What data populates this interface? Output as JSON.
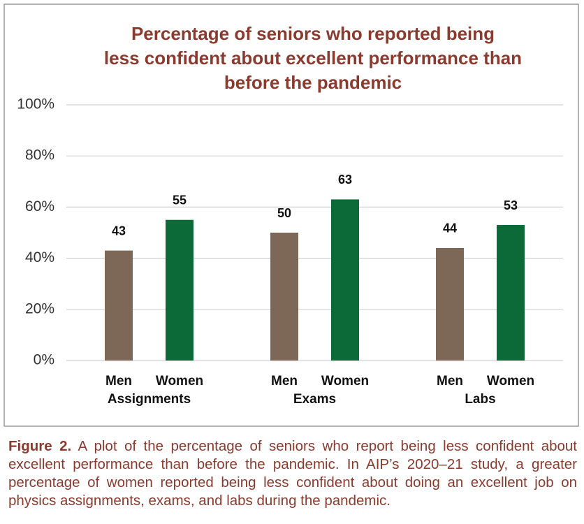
{
  "chart_data": {
    "type": "grouped-bar",
    "title": "Percentage of seniors who reported being less confident about excellent performance than before the pandemic",
    "categories": [
      "Assignments",
      "Exams",
      "Labs"
    ],
    "series": [
      {
        "name": "Men",
        "color": "#7d6858",
        "values": [
          43,
          50,
          44
        ]
      },
      {
        "name": "Women",
        "color": "#0b6a38",
        "values": [
          55,
          63,
          53
        ]
      }
    ],
    "ylim": [
      0,
      100
    ],
    "yticks": [
      {
        "value": 0,
        "label": "0%"
      },
      {
        "value": 20,
        "label": "20%"
      },
      {
        "value": 40,
        "label": "40%"
      },
      {
        "value": 60,
        "label": "60%"
      },
      {
        "value": 80,
        "label": "80%"
      },
      {
        "value": 100,
        "label": "100%"
      }
    ],
    "grid": true
  },
  "caption": {
    "label": "Figure 2.",
    "text": "A plot of the percentage of seniors who report being less confident about excellent performance than before the pandemic. In AIP’s 2020–21 study, a greater percentage of women reported being less confident about doing an excellent job on physics assignments, exams, and labs during the pandemic."
  }
}
